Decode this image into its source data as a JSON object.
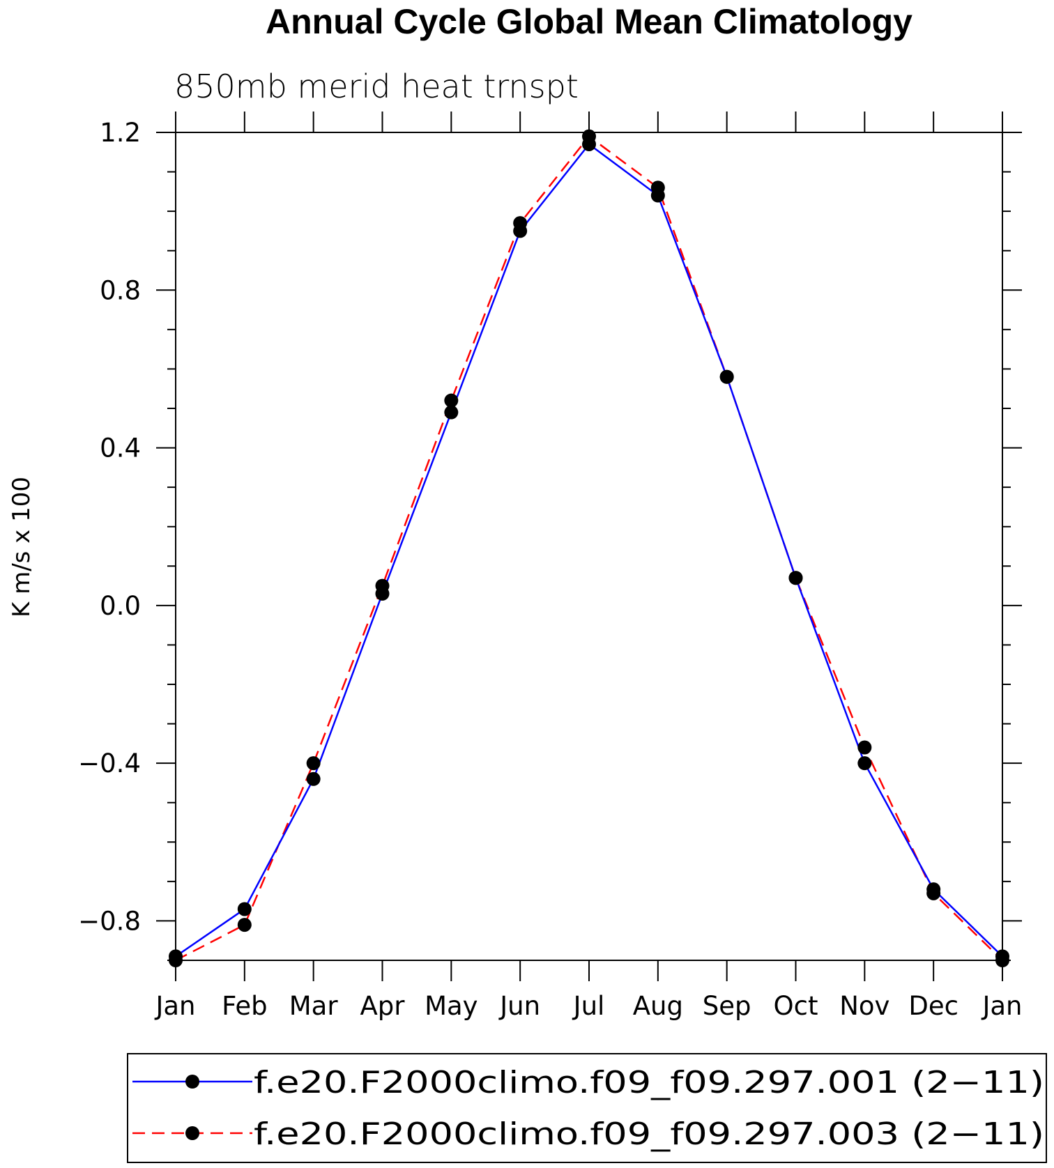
{
  "chart_data": {
    "type": "line",
    "title": "Annual Cycle Global Mean Climatology",
    "subtitle": "850mb merid heat trnspt",
    "ylabel": "K m/s x 100",
    "xlabel": "",
    "ylim": [
      -0.9,
      1.2
    ],
    "yticks": [
      "1.2",
      "0.8",
      "0.4",
      "0.0",
      "−0.4",
      "−0.8"
    ],
    "ytick_values": [
      1.2,
      0.8,
      0.4,
      0.0,
      -0.4,
      -0.8
    ],
    "categories": [
      "Jan",
      "Feb",
      "Mar",
      "Apr",
      "May",
      "Jun",
      "Jul",
      "Aug",
      "Sep",
      "Oct",
      "Nov",
      "Dec",
      "Jan"
    ],
    "grid": false,
    "legend_position": "bottom",
    "series": [
      {
        "name": "f.e20.F2000climo.f09_f09.297.001 (2−11)",
        "color": "#0000ff",
        "dash": "solid",
        "values": [
          -0.89,
          -0.77,
          -0.44,
          0.03,
          0.49,
          0.95,
          1.17,
          1.04,
          0.58,
          0.07,
          -0.4,
          -0.72,
          -0.89
        ]
      },
      {
        "name": "f.e20.F2000climo.f09_f09.297.003 (2−11)",
        "color": "#ff0000",
        "dash": "dashed",
        "values": [
          -0.9,
          -0.81,
          -0.4,
          0.05,
          0.52,
          0.97,
          1.19,
          1.06,
          0.58,
          0.07,
          -0.36,
          -0.73,
          -0.9
        ]
      }
    ]
  }
}
